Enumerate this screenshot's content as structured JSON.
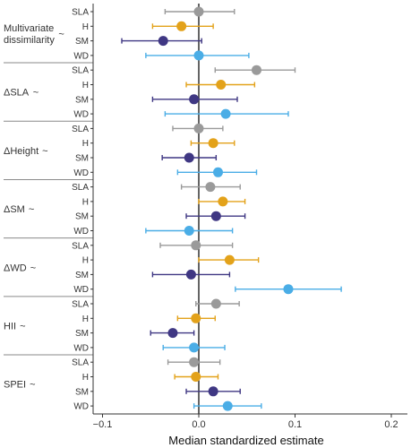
{
  "chart_data": {
    "type": "scatter",
    "subtype": "forest-plot-with-error-bars",
    "xlabel": "Median standardized estimate",
    "xlim": [
      -0.115,
      0.22
    ],
    "xticks": [
      -0.1,
      0.0,
      0.1,
      0.2
    ],
    "xtick_labels": [
      "−0.1",
      "0.0",
      "0.1",
      "0.2"
    ],
    "reference_line_x": 0,
    "group_suffix": "~",
    "grid": false,
    "legend": "none",
    "trait_colors": {
      "SLA": "#9a9a9a",
      "H": "#e3a21a",
      "SM": "#3f3783",
      "WD": "#4aade6"
    },
    "groups": [
      {
        "label": "Multivariate\ndissimilarity",
        "rows": [
          {
            "trait": "SLA",
            "estimate": 0.0,
            "lower": -0.035,
            "upper": 0.037
          },
          {
            "trait": "H",
            "estimate": -0.018,
            "lower": -0.048,
            "upper": 0.015
          },
          {
            "trait": "SM",
            "estimate": -0.037,
            "lower": -0.08,
            "upper": 0.003
          },
          {
            "trait": "WD",
            "estimate": 0.0,
            "lower": -0.055,
            "upper": 0.052
          }
        ]
      },
      {
        "label": "ΔSLA",
        "rows": [
          {
            "trait": "SLA",
            "estimate": 0.06,
            "lower": 0.017,
            "upper": 0.1
          },
          {
            "trait": "H",
            "estimate": 0.023,
            "lower": -0.013,
            "upper": 0.058
          },
          {
            "trait": "SM",
            "estimate": -0.005,
            "lower": -0.048,
            "upper": 0.04
          },
          {
            "trait": "WD",
            "estimate": 0.028,
            "lower": -0.035,
            "upper": 0.093
          }
        ]
      },
      {
        "label": "ΔHeight",
        "rows": [
          {
            "trait": "SLA",
            "estimate": 0.0,
            "lower": -0.027,
            "upper": 0.025
          },
          {
            "trait": "H",
            "estimate": 0.015,
            "lower": -0.008,
            "upper": 0.037
          },
          {
            "trait": "SM",
            "estimate": -0.01,
            "lower": -0.038,
            "upper": 0.018
          },
          {
            "trait": "WD",
            "estimate": 0.02,
            "lower": -0.022,
            "upper": 0.06
          }
        ]
      },
      {
        "label": "ΔSM",
        "rows": [
          {
            "trait": "SLA",
            "estimate": 0.012,
            "lower": -0.018,
            "upper": 0.043
          },
          {
            "trait": "H",
            "estimate": 0.025,
            "lower": 0.0,
            "upper": 0.048
          },
          {
            "trait": "SM",
            "estimate": 0.018,
            "lower": -0.013,
            "upper": 0.048
          },
          {
            "trait": "WD",
            "estimate": -0.01,
            "lower": -0.055,
            "upper": 0.035
          }
        ]
      },
      {
        "label": "ΔWD",
        "rows": [
          {
            "trait": "SLA",
            "estimate": -0.003,
            "lower": -0.04,
            "upper": 0.035
          },
          {
            "trait": "H",
            "estimate": 0.032,
            "lower": 0.0,
            "upper": 0.062
          },
          {
            "trait": "SM",
            "estimate": -0.008,
            "lower": -0.048,
            "upper": 0.032
          },
          {
            "trait": "WD",
            "estimate": 0.093,
            "lower": 0.038,
            "upper": 0.148
          }
        ]
      },
      {
        "label": "HII",
        "rows": [
          {
            "trait": "SLA",
            "estimate": 0.018,
            "lower": -0.003,
            "upper": 0.042
          },
          {
            "trait": "H",
            "estimate": -0.003,
            "lower": -0.022,
            "upper": 0.017
          },
          {
            "trait": "SM",
            "estimate": -0.027,
            "lower": -0.05,
            "upper": -0.005
          },
          {
            "trait": "WD",
            "estimate": -0.005,
            "lower": -0.037,
            "upper": 0.027
          }
        ]
      },
      {
        "label": "SPEI",
        "rows": [
          {
            "trait": "SLA",
            "estimate": -0.005,
            "lower": -0.032,
            "upper": 0.022
          },
          {
            "trait": "H",
            "estimate": -0.003,
            "lower": -0.025,
            "upper": 0.02
          },
          {
            "trait": "SM",
            "estimate": 0.015,
            "lower": -0.013,
            "upper": 0.043
          },
          {
            "trait": "WD",
            "estimate": 0.03,
            "lower": -0.005,
            "upper": 0.065
          }
        ]
      }
    ]
  }
}
